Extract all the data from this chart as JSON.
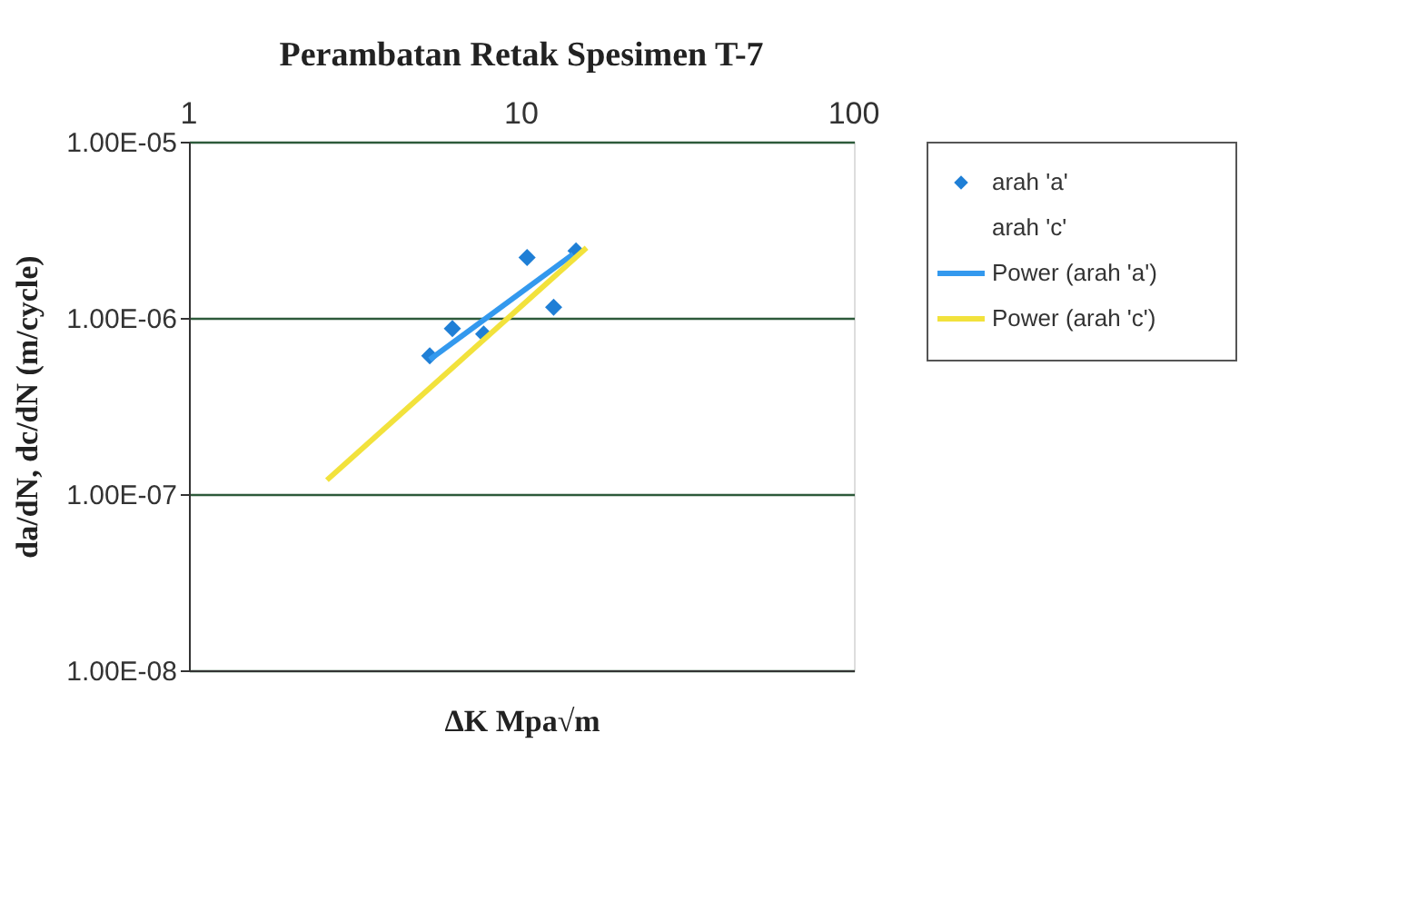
{
  "chart_data": {
    "type": "scatter",
    "title": "Perambatan Retak Spesimen T-7",
    "xlabel": "ΔK Mpa√m",
    "ylabel": "da/dN, dc/dN (m/cycle)",
    "log": "xy",
    "grid": "y",
    "legend": "right",
    "xlim": [
      1,
      100
    ],
    "xticks": [
      1,
      10,
      100
    ],
    "ylim": [
      1e-08,
      1e-05
    ],
    "yticks": [
      {
        "value": 1e-08,
        "label": "1.00E-08"
      },
      {
        "value": 1e-07,
        "label": "1.00E-07"
      },
      {
        "value": 1e-06,
        "label": "1.00E-06"
      },
      {
        "value": 1e-05,
        "label": "1.00E-05"
      }
    ],
    "series": [
      {
        "name": "arah 'a'",
        "marker": "diamond",
        "color": "#1f7fd6",
        "x": [
          5.3,
          6.2,
          7.7,
          10.4,
          12.5,
          14.6
        ],
        "values": [
          6.1e-07,
          8.7e-07,
          8.1e-07,
          2.2e-06,
          1.15e-06,
          2.4e-06
        ]
      },
      {
        "name": "arah 'c'",
        "marker": "none"
      },
      {
        "name": "Power (arah 'a')",
        "type": "line",
        "color": "#3399ee",
        "x": [
          5.3,
          14.3
        ],
        "values": [
          5.8e-07,
          2.3e-06
        ]
      },
      {
        "name": "Power (arah 'c')",
        "type": "line",
        "color": "#f2e23c",
        "x": [
          2.6,
          15.7
        ],
        "values": [
          1.2e-07,
          2.5e-06
        ]
      }
    ]
  }
}
